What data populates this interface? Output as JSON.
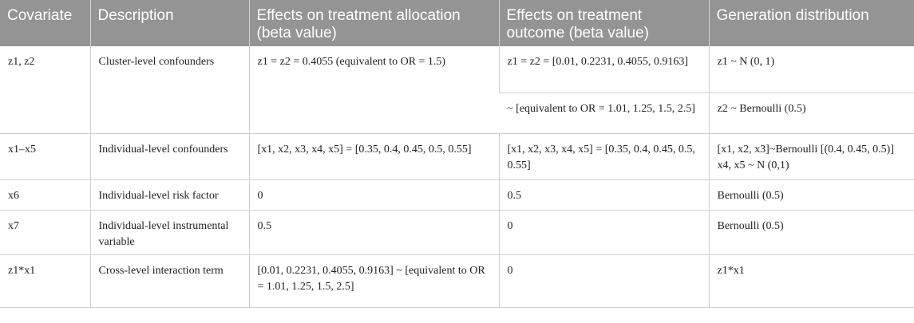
{
  "table": {
    "headers": [
      "Covariate",
      "Description",
      "Effects on treatment allocation (beta value)",
      "Effects on treatment outcome (beta value)",
      "Generation distribution"
    ],
    "rows": [
      {
        "covariate": "z1, z2",
        "description": "Cluster-level confounders",
        "allocation": "z1 = z2 = 0.4055 (equivalent to OR = 1.5)",
        "outcome_a": "z1 = z2 = [0.01, 0.2231, 0.4055, 0.9163]",
        "outcome_b": "~ [equivalent to OR = 1.01, 1.25, 1.5, 2.5]",
        "distribution_a": "z1 ~ N (0, 1)",
        "distribution_b": "z2 ~ Bernoulli (0.5)"
      },
      {
        "covariate": "x1–x5",
        "description": "Individual-level confounders",
        "allocation": "[x1, x2, x3, x4, x5] = [0.35, 0.4, 0.45, 0.5, 0.55]",
        "outcome": "[x1, x2, x3, x4, x5] = [0.35, 0.4, 0.45, 0.5, 0.55]",
        "distribution": "[x1, x2, x3]~Bernoulli [(0.4, 0.45, 0.5)] x4, x5 ~ N (0,1)"
      },
      {
        "covariate": "x6",
        "description": "Individual-level risk factor",
        "allocation": "0",
        "outcome": "0.5",
        "distribution": "Bernoulli (0.5)"
      },
      {
        "covariate": "x7",
        "description": "Individual-level instrumental variable",
        "allocation": "0.5",
        "outcome": "0",
        "distribution": "Bernoulli (0.5)"
      },
      {
        "covariate": "z1*x1",
        "description": "Cross-level interaction term",
        "allocation": "[0.01, 0.2231, 0.4055, 0.9163] ~ [equivalent to OR = 1.01, 1.25, 1.5, 2.5]",
        "outcome": "0",
        "distribution": "z1*x1"
      }
    ]
  }
}
